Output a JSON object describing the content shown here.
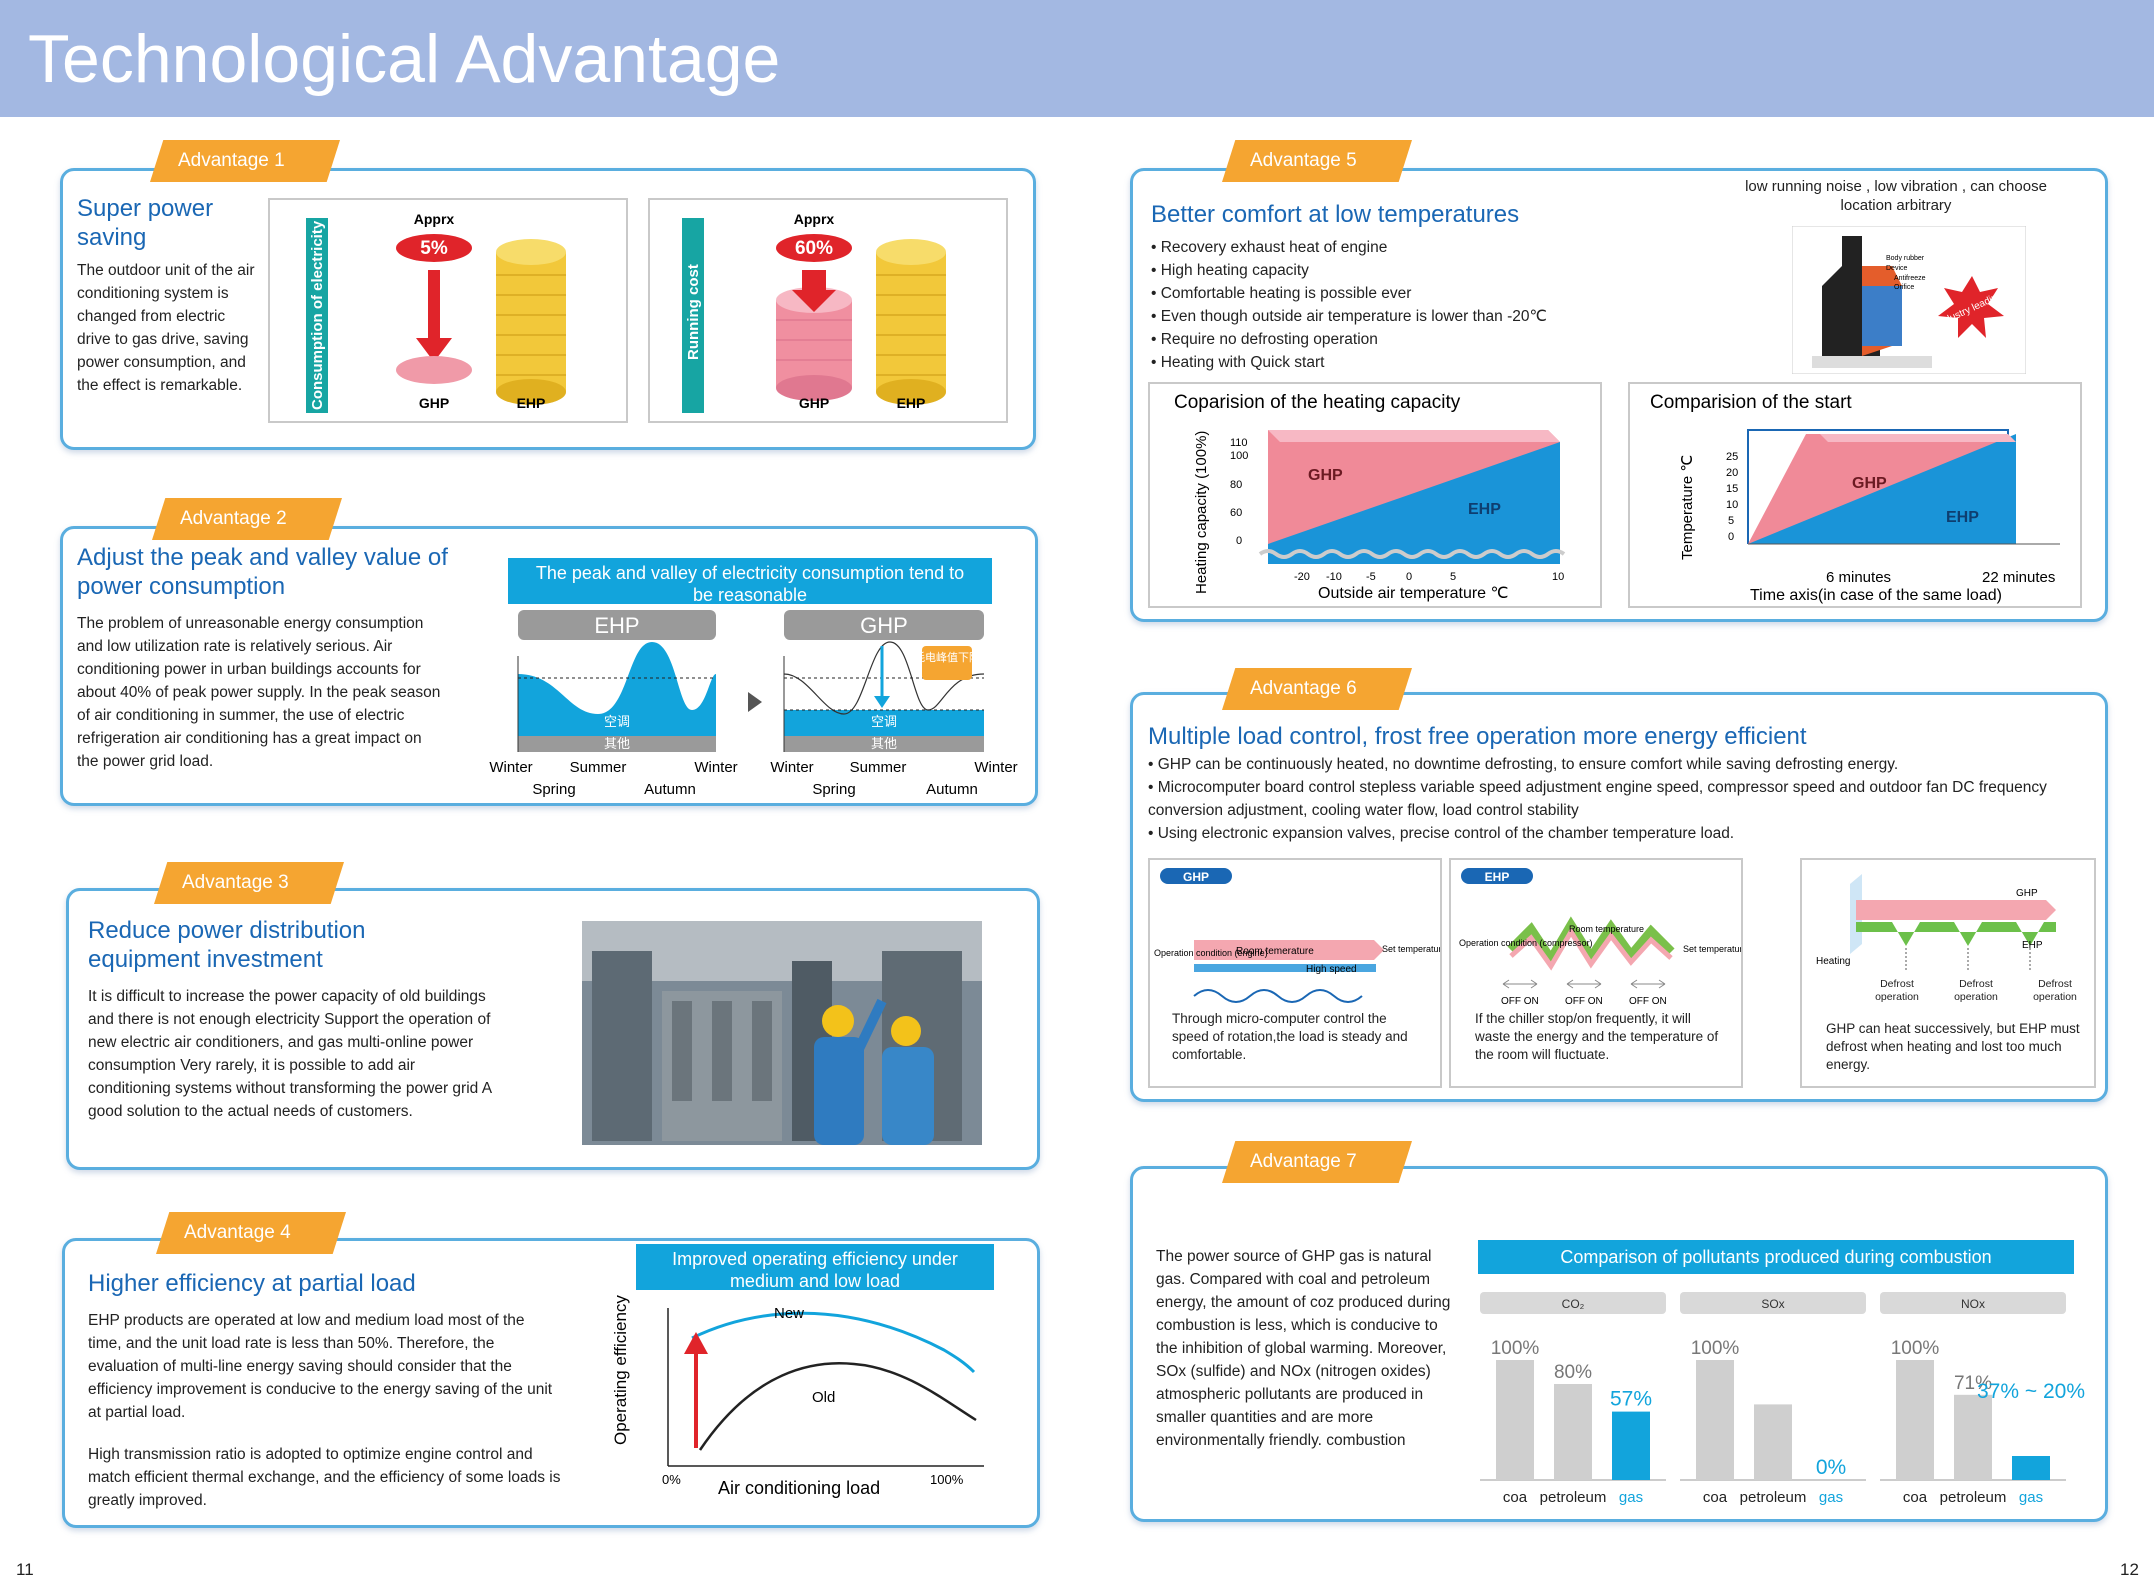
{
  "header": {
    "title": "Technological Advantage"
  },
  "page_numbers": {
    "left": "11",
    "right": "12"
  },
  "adv1": {
    "tag": "Advantage 1",
    "title": "Super power saving",
    "text": "The outdoor unit of the air conditioning system is changed from electric drive to gas drive, saving power consumption, and the effect is remarkable.",
    "panel1": {
      "axis": "Consumption of electricity",
      "apprx": "Apprx",
      "pct": "5%",
      "ghp": "GHP",
      "ehp": "EHP"
    },
    "panel2": {
      "axis": "Running cost",
      "apprx": "Apprx",
      "pct": "60%",
      "ghp": "GHP",
      "ehp": "EHP"
    }
  },
  "adv2": {
    "tag": "Advantage 2",
    "title": "Adjust the peak and valley value of power consumption",
    "text": "The problem of unreasonable energy consumption and low utilization rate is relatively serious. Air conditioning power in urban buildings accounts for about 40% of peak power supply. In the peak season of air conditioning in summer, the use of electric refrigeration air conditioning has a great impact on the power grid load.",
    "banner": "The peak and valley of electricity consumption tend to be reasonable",
    "ehp": "EHP",
    "ghp": "GHP",
    "kongtiao": "空调",
    "qita": "其他",
    "note": "耗电峰值下降",
    "seasons_top": [
      "Winter",
      "Summer",
      "Winter"
    ],
    "seasons_bottom": [
      "Spring",
      "Autumn"
    ]
  },
  "adv3": {
    "tag": "Advantage 3",
    "title": "Reduce power distribution equipment investment",
    "text": "It is difficult to increase the power capacity of old buildings and there is not enough electricity Support the operation of new electric air conditioners, and gas multi-online power consumption Very rarely, it is possible to add air conditioning systems without transforming the power grid A good solution to the actual needs of customers."
  },
  "adv4": {
    "tag": "Advantage 4",
    "title": "Higher efficiency at partial load",
    "text1": "EHP products are operated at low and medium load most of the time, and the unit load rate is less than 50%. Therefore, the evaluation of multi-line energy saving should consider that the efficiency improvement is conducive to the energy saving of the unit at partial load.",
    "text2": "High transmission ratio is adopted to optimize engine control and match efficient thermal exchange, and the efficiency of some loads is greatly improved.",
    "banner": "Improved operating efficiency under medium and low load",
    "ylabel": "Operating efficiency",
    "xlabel": "Air conditioning load",
    "x0": "0%",
    "x1": "100%",
    "new": "New",
    "old": "Old"
  },
  "adv5": {
    "tag": "Advantage 5",
    "title": "Better comfort at low temperatures",
    "note": "low running noise , low vibration , can choose location arbitrary",
    "bullets": [
      "• Recovery exhaust heat of engine",
      "• High heating capacity",
      "• Comfortable heating is possible ever",
      "• Even though outside air temperature is lower than -20℃",
      "• Require no defrosting operation",
      "• Heating with Quick start"
    ],
    "engine_labels": [
      "Body rubber",
      "Device",
      "Antifreeze",
      "Orifice"
    ],
    "badge": "Industry leading",
    "chart1": {
      "title": "Coparision of the heating capacity",
      "ylabel": "Heating capacity (100%)",
      "xlabel": "Outside air temperature ℃",
      "yticks": [
        "110",
        "100",
        "80",
        "60",
        "0"
      ],
      "xticks": [
        "-20",
        "-10",
        "-5",
        "0",
        "5",
        "10"
      ],
      "ghp": "GHP",
      "ehp": "EHP"
    },
    "chart2": {
      "title": "Comparision of the start",
      "ylabel": "Temperature ℃",
      "xlabel": "Time axis(in case of the same load)",
      "yticks": [
        "25",
        "20",
        "15",
        "10",
        "5",
        "0"
      ],
      "t1": "6 minutes",
      "t2": "22 minutes",
      "ghp": "GHP",
      "ehp": "EHP"
    }
  },
  "adv6": {
    "tag": "Advantage 6",
    "title": "Multiple load control, frost free operation more energy efficient",
    "bullets": [
      "• GHP can be continuously heated, no downtime defrosting, to ensure comfort while saving defrosting energy.",
      "• Microcomputer board control stepless variable speed adjustment engine speed, compressor speed and outdoor fan DC frequency conversion adjustment, cooling water flow, load control stability",
      "• Using electronic expansion valves, precise control of the chamber temperature load."
    ],
    "p1": {
      "badge": "GHP",
      "op": "Operation condition (engine)",
      "room": "Room temerature",
      "set": "Set temperature",
      "speed": "High speed",
      "caption": "Through micro-computer control the speed of rotation,the load is steady and comfortable."
    },
    "p2": {
      "badge": "EHP",
      "op": "Operation condition (compressor)",
      "room": "Room temperature",
      "set": "Set temperature",
      "offon": "OFF ON",
      "caption": "If the chiller stop/on frequently, it will waste the energy and the temperature of the room will fluctuate."
    },
    "p3": {
      "ghp": "GHP",
      "ehp": "EHP",
      "heating": "Heating",
      "defrost": "Defrost operation",
      "caption": "GHP can heat successively, but EHP must defrost when heating and lost too much energy."
    }
  },
  "adv7": {
    "tag": "Advantage 7",
    "text": "The power source of GHP gas is natural gas. Compared with coal and petroleum energy, the amount of coz produced during combustion is less, which is conducive to the inhibition of global warming. Moreover, SOx (sulfide) and NOx (nitrogen oxides) atmospheric pollutants are produced in smaller quantities and are more environmentally friendly. combustion",
    "banner": "Comparison of pollutants produced during combustion"
  },
  "chart_data": [
    {
      "type": "bar",
      "title": "CO₂",
      "categories": [
        "coa",
        "petroleum",
        "gas"
      ],
      "values": [
        100,
        80,
        57
      ],
      "labels": [
        "100%",
        "80%",
        "57%"
      ]
    },
    {
      "type": "bar",
      "title": "SOx",
      "categories": [
        "coa",
        "petroleum",
        "gas"
      ],
      "values": [
        100,
        63,
        0
      ],
      "labels": [
        "100%",
        "",
        "0%"
      ]
    },
    {
      "type": "bar",
      "title": "NOx",
      "categories": [
        "coa",
        "petroleum",
        "gas"
      ],
      "values": [
        100,
        71,
        20
      ],
      "labels": [
        "100%",
        "71%",
        "37% ~ 20%"
      ]
    }
  ]
}
